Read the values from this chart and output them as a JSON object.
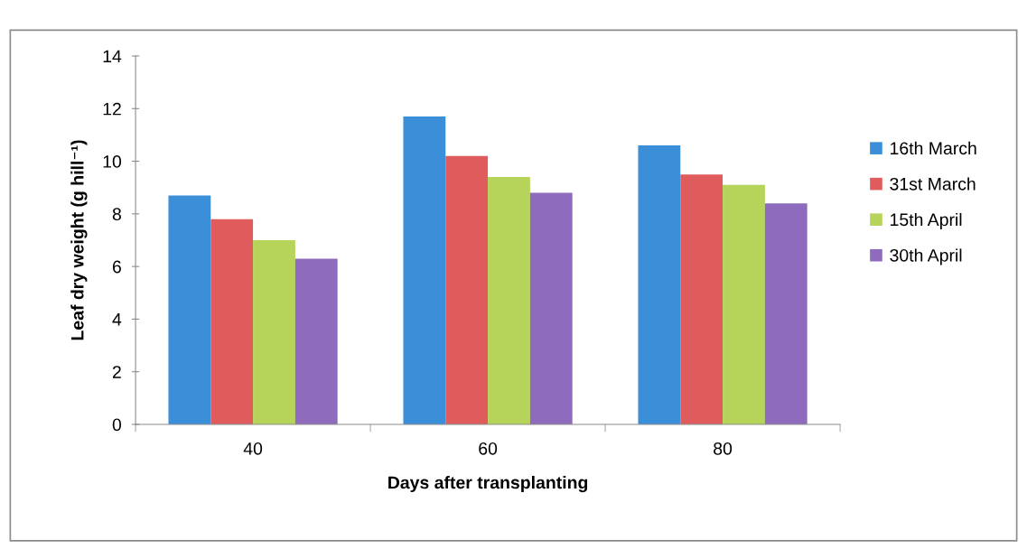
{
  "chart_data": {
    "type": "bar",
    "xlabel": "Days after transplanting",
    "ylabel": "Leaf dry weight (g hill⁻¹)",
    "categories": [
      "40",
      "60",
      "80"
    ],
    "series": [
      {
        "name": "16th March",
        "color": "#3b8ed8",
        "values": [
          8.7,
          11.7,
          10.6
        ]
      },
      {
        "name": "31st March",
        "color": "#e05c5c",
        "values": [
          7.8,
          10.2,
          9.5
        ]
      },
      {
        "name": "15th April",
        "color": "#b6d45a",
        "values": [
          7.0,
          9.4,
          9.1
        ]
      },
      {
        "name": "30th April",
        "color": "#8e6bbd",
        "values": [
          6.3,
          8.8,
          8.4
        ]
      }
    ],
    "ylim": [
      0,
      14
    ],
    "yticks": [
      0,
      2,
      4,
      6,
      8,
      10,
      12,
      14
    ],
    "grid": false,
    "legend": "right"
  }
}
